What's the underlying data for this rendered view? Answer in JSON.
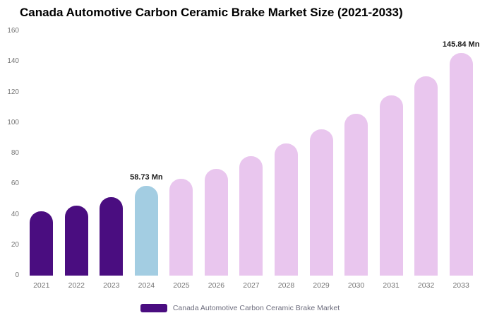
{
  "title": "Canada Automotive Carbon Ceramic Brake Market Size (2021-2033)",
  "legend": {
    "label": "Canada Automotive Carbon Ceramic Brake Market",
    "swatch_color": "#4a0d80"
  },
  "colors": {
    "historical_bar": "#4a0d80",
    "current_year_bar": "#a3cde2",
    "forecast_bar": "#e9c6ee",
    "axis_text": "#757575",
    "annotation_text": "#1a1a1a"
  },
  "chart_data": {
    "type": "bar",
    "title": "Canada Automotive Carbon Ceramic Brake Market Size (2021-2033)",
    "categories": [
      "2021",
      "2022",
      "2023",
      "2024",
      "2025",
      "2026",
      "2027",
      "2028",
      "2029",
      "2030",
      "2031",
      "2032",
      "2033"
    ],
    "values": [
      42,
      46,
      51.5,
      58.73,
      63.5,
      70,
      78,
      86.5,
      95.5,
      106,
      118,
      130.5,
      145.84
    ],
    "bar_colors": [
      "#4a0d80",
      "#4a0d80",
      "#4a0d80",
      "#a3cde2",
      "#e9c6ee",
      "#e9c6ee",
      "#e9c6ee",
      "#e9c6ee",
      "#e9c6ee",
      "#e9c6ee",
      "#e9c6ee",
      "#e9c6ee",
      "#e9c6ee"
    ],
    "annotations": [
      {
        "category": "2024",
        "text": "58.73 Mn"
      },
      {
        "category": "2033",
        "text": "145.84 Mn"
      }
    ],
    "xlabel": "",
    "ylabel": "",
    "ylim": [
      0,
      160
    ],
    "ytick_step": 20,
    "grid": false,
    "legend_position": "bottom",
    "legend_entries": [
      "Canada Automotive Carbon Ceramic Brake Market"
    ],
    "unit": "Mn"
  }
}
